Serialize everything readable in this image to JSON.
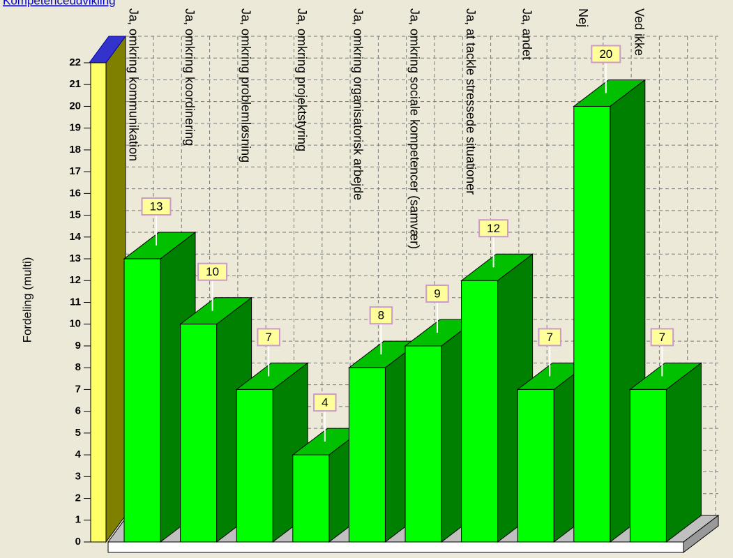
{
  "chart_data": {
    "type": "bar3d",
    "title": "Kompetenceudvikling",
    "y_label": "Fordeling (multi)",
    "categories": [
      "Ja, omkring kommunikation",
      "Ja, omkring koordinering",
      "Ja, omkring problemløsning",
      "Ja, omkring projektstyring",
      "Ja, omkring organisatorisk arbejde",
      "Ja, omkring sociale kompetencer (samvær)",
      "Ja, at tackle stressede situationer",
      "Ja, andet",
      "Nej",
      "Ved ikke"
    ],
    "values": [
      13,
      10,
      7,
      4,
      8,
      9,
      12,
      7,
      20,
      7
    ],
    "color": "#00ff00",
    "ylim": [
      0,
      22
    ],
    "yticks": [
      0,
      1,
      2,
      3,
      4,
      5,
      6,
      7,
      8,
      9,
      10,
      11,
      12,
      13,
      14,
      15,
      16,
      17,
      18,
      19,
      20,
      21,
      22
    ],
    "grid": true
  }
}
